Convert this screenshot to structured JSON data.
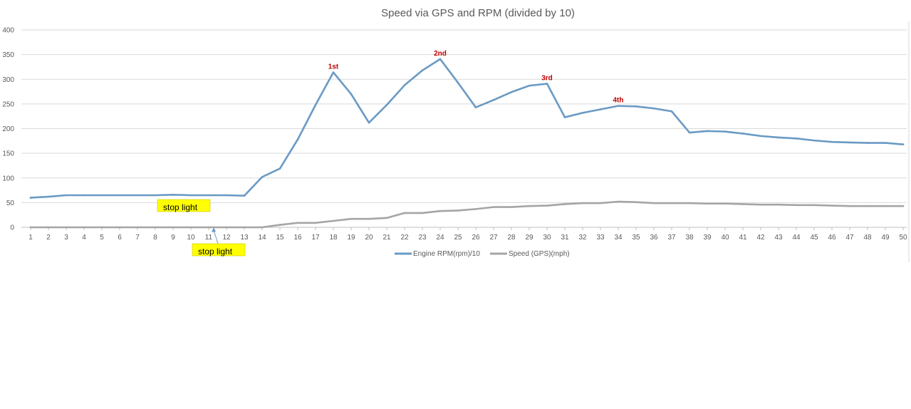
{
  "chart_data": {
    "type": "line",
    "title": "Speed via GPS and RPM (divided by 10)",
    "xlabel": "",
    "ylabel": "",
    "ylim": [
      0,
      400
    ],
    "yticks": [
      0,
      50,
      100,
      150,
      200,
      250,
      300,
      350,
      400
    ],
    "grid": true,
    "legend_position": "bottom",
    "x": [
      1,
      2,
      3,
      4,
      5,
      6,
      7,
      8,
      9,
      10,
      11,
      12,
      13,
      14,
      15,
      16,
      17,
      18,
      19,
      20,
      21,
      22,
      23,
      24,
      25,
      26,
      27,
      28,
      29,
      30,
      31,
      32,
      33,
      34,
      35,
      36,
      37,
      38,
      39,
      40,
      41,
      42,
      43,
      44,
      45,
      46,
      47,
      48,
      49,
      50
    ],
    "series": [
      {
        "name": "Engine RPM(rpm)/10",
        "color": "#6a9ac4",
        "values": [
          60,
          62,
          65,
          65,
          65,
          65,
          65,
          65,
          66,
          65,
          65,
          65,
          64,
          102,
          119,
          178,
          248,
          314,
          270,
          212,
          248,
          288,
          318,
          341,
          293,
          243,
          258,
          274,
          287,
          291,
          223,
          232,
          239,
          246,
          245,
          241,
          235,
          192,
          195,
          194,
          190,
          185,
          182,
          180,
          176,
          173,
          172,
          171,
          171,
          168
        ]
      },
      {
        "name": "Speed (GPS)(mph)",
        "color": "#a5a5a5",
        "values": [
          0,
          0,
          0,
          0,
          0,
          0,
          0,
          0,
          0,
          0,
          0,
          0,
          0,
          0,
          5,
          9,
          9,
          13,
          17,
          17,
          19,
          29,
          29,
          33,
          34,
          37,
          41,
          41,
          43,
          44,
          47,
          49,
          49,
          52,
          51,
          49,
          49,
          49,
          48,
          48,
          47,
          46,
          46,
          45,
          45,
          44,
          43,
          43,
          43,
          43
        ]
      }
    ],
    "annotations": {
      "gears": [
        {
          "label": "1st",
          "x": 18
        },
        {
          "label": "2nd",
          "x": 24
        },
        {
          "label": "3rd",
          "x": 30
        },
        {
          "label": "4th",
          "x": 34
        }
      ],
      "notes": [
        {
          "label": "stop light"
        },
        {
          "label": "stop light"
        }
      ]
    }
  }
}
